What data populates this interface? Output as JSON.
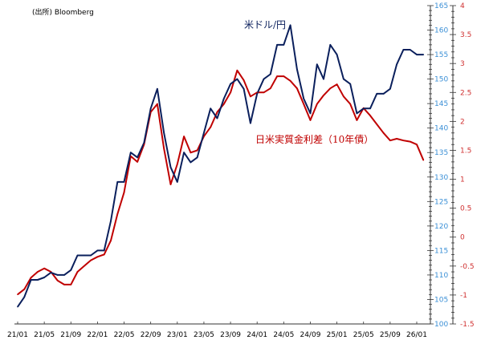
{
  "source_note": "(出所) Bloomberg",
  "colors": {
    "usdjpy": "#0a1f5c",
    "spread": "#c00000",
    "left_axis_labels": "#3a8fd6",
    "right_axis_labels": "#d03030"
  },
  "chart_data": {
    "type": "line",
    "x_tick_labels": [
      "21/01",
      "21/05",
      "21/09",
      "22/01",
      "22/05",
      "22/09",
      "23/01",
      "23/05",
      "23/09",
      "24/01",
      "24/05",
      "24/09",
      "25/01",
      "25/05",
      "25/09",
      "26/01"
    ],
    "x": [
      "2021-01",
      "2021-02",
      "2021-03",
      "2021-04",
      "2021-05",
      "2021-06",
      "2021-07",
      "2021-08",
      "2021-09",
      "2021-10",
      "2021-11",
      "2021-12",
      "2022-01",
      "2022-02",
      "2022-03",
      "2022-04",
      "2022-05",
      "2022-06",
      "2022-07",
      "2022-08",
      "2022-09",
      "2022-10",
      "2022-11",
      "2022-12",
      "2023-01",
      "2023-02",
      "2023-03",
      "2023-04",
      "2023-05",
      "2023-06",
      "2023-07",
      "2023-08",
      "2023-09",
      "2023-10",
      "2023-11",
      "2023-12",
      "2024-01",
      "2024-02",
      "2024-03",
      "2024-04",
      "2024-05",
      "2024-06",
      "2024-07",
      "2024-08",
      "2024-09",
      "2024-10",
      "2024-11",
      "2024-12",
      "2025-01",
      "2025-02",
      "2025-03",
      "2025-04",
      "2025-05",
      "2025-06",
      "2025-07",
      "2025-08",
      "2025-09",
      "2025-10",
      "2025-11",
      "2025-12",
      "2026-01",
      "2026-02"
    ],
    "left_axis": {
      "range": [
        100,
        165
      ],
      "ticks": [
        100,
        105,
        110,
        115,
        120,
        125,
        130,
        135,
        140,
        145,
        150,
        155,
        160,
        165
      ]
    },
    "right_axis": {
      "range": [
        -1.5,
        4
      ],
      "ticks": [
        "-1.5",
        "-1",
        "-0.5",
        "0",
        "0.5",
        "1",
        "1.5",
        "2",
        "2.5",
        "3",
        "3.5",
        "4"
      ]
    },
    "grid": false,
    "series": [
      {
        "name": "米ドル/円",
        "axis": "left",
        "values": [
          103.5,
          105.5,
          109,
          109,
          109.5,
          110.5,
          110,
          110,
          111,
          114,
          114,
          114,
          115,
          115,
          121,
          129,
          129,
          135,
          134,
          137,
          144,
          148,
          139,
          132,
          129,
          135,
          133,
          134,
          139,
          144,
          142,
          146,
          149,
          150,
          148,
          141,
          147,
          150,
          151,
          157,
          157,
          161,
          152,
          146,
          143,
          153,
          150,
          157,
          155,
          150,
          149,
          143,
          144,
          144,
          147,
          147,
          148,
          153,
          156,
          156,
          155,
          155
        ]
      },
      {
        "name": "日米実質金利差（10年債）",
        "axis": "right",
        "values": [
          -0.99,
          -0.9,
          -0.7,
          -0.6,
          -0.54,
          -0.6,
          -0.75,
          -0.82,
          -0.82,
          -0.6,
          -0.5,
          -0.4,
          -0.34,
          -0.3,
          -0.06,
          0.4,
          0.77,
          1.4,
          1.3,
          1.6,
          2.16,
          2.3,
          1.53,
          0.91,
          1.26,
          1.74,
          1.46,
          1.5,
          1.74,
          1.9,
          2.16,
          2.3,
          2.5,
          2.88,
          2.71,
          2.43,
          2.5,
          2.5,
          2.57,
          2.78,
          2.78,
          2.7,
          2.57,
          2.3,
          2.02,
          2.3,
          2.45,
          2.57,
          2.64,
          2.43,
          2.3,
          2.02,
          2.23,
          2.1,
          1.95,
          1.8,
          1.67,
          1.7,
          1.67,
          1.65,
          1.6,
          1.33
        ]
      }
    ]
  }
}
